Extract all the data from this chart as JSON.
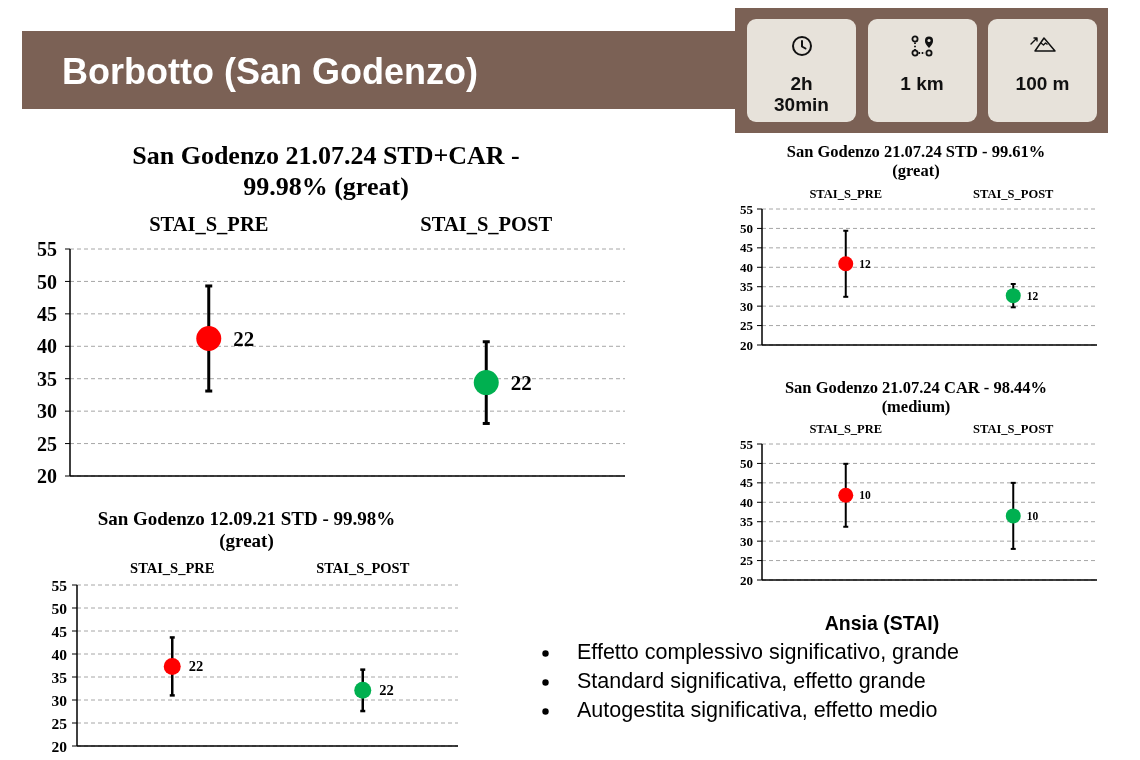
{
  "chart_data": [
    {
      "type": "other",
      "title": "Borbotto (San Godenzo)",
      "annotations": [
        "2h 30min",
        "1 km",
        "100 m"
      ]
    },
    {
      "type": "scatter",
      "title": "San Godenzo 21.07.24 STD+CAR - 99.98% (great)",
      "categories": [
        "STAI_S_PRE",
        "STAI_S_POST"
      ],
      "values": [
        41.2,
        34.4
      ],
      "errors": [
        8.1,
        6.3
      ],
      "colors": [
        "#ff0000",
        "#00b050"
      ],
      "annotations": [
        {
          "text": "22",
          "x": "STAI_S_PRE",
          "y": 41.2
        },
        {
          "text": "22",
          "x": "STAI_S_POST",
          "y": 34.4
        }
      ],
      "ylim": [
        20,
        55
      ],
      "yticks": [
        20,
        25,
        30,
        35,
        40,
        45,
        50,
        55
      ],
      "grid": "y",
      "marker": "circle"
    },
    {
      "type": "scatter",
      "title": "San Godenzo 21.07.24 STD - 99.61% (great)",
      "categories": [
        "STAI_S_PRE",
        "STAI_S_POST"
      ],
      "values": [
        40.9,
        32.7
      ],
      "errors": [
        8.5,
        3.0
      ],
      "colors": [
        "#ff0000",
        "#00b050"
      ],
      "annotations": [
        {
          "text": "12",
          "x": "STAI_S_PRE",
          "y": 40.9
        },
        {
          "text": "12",
          "x": "STAI_S_POST",
          "y": 32.7
        }
      ],
      "ylim": [
        20,
        55
      ],
      "yticks": [
        20,
        25,
        30,
        35,
        40,
        45,
        50,
        55
      ],
      "grid": "y",
      "marker": "circle"
    },
    {
      "type": "scatter",
      "title": "San Godenzo 21.07.24 CAR - 98.44% (medium)",
      "categories": [
        "STAI_S_PRE",
        "STAI_S_POST"
      ],
      "values": [
        41.8,
        36.5
      ],
      "errors": [
        8.1,
        8.5
      ],
      "colors": [
        "#ff0000",
        "#00b050"
      ],
      "annotations": [
        {
          "text": "10",
          "x": "STAI_S_PRE",
          "y": 41.8
        },
        {
          "text": "10",
          "x": "STAI_S_POST",
          "y": 36.5
        }
      ],
      "ylim": [
        20,
        55
      ],
      "yticks": [
        20,
        25,
        30,
        35,
        40,
        45,
        50,
        55
      ],
      "grid": "y",
      "marker": "circle"
    },
    {
      "type": "scatter",
      "title": "San Godenzo 12.09.21 STD - 99.98% (great)",
      "categories": [
        "STAI_S_PRE",
        "STAI_S_POST"
      ],
      "values": [
        37.3,
        32.1
      ],
      "errors": [
        6.3,
        4.5
      ],
      "colors": [
        "#ff0000",
        "#00b050"
      ],
      "annotations": [
        {
          "text": "22",
          "x": "STAI_S_PRE",
          "y": 37.3
        },
        {
          "text": "22",
          "x": "STAI_S_POST",
          "y": 32.1
        }
      ],
      "ylim": [
        20,
        55
      ],
      "yticks": [
        20,
        25,
        30,
        35,
        40,
        45,
        50,
        55
      ],
      "grid": "y",
      "marker": "circle"
    },
    {
      "type": "other",
      "title": "Ansia (STAI)",
      "annotations": [
        "Effetto complessivo significativo, grande",
        "Standard significativa, effetto grande",
        "Autogestita significativa, effetto medio"
      ]
    }
  ]
}
